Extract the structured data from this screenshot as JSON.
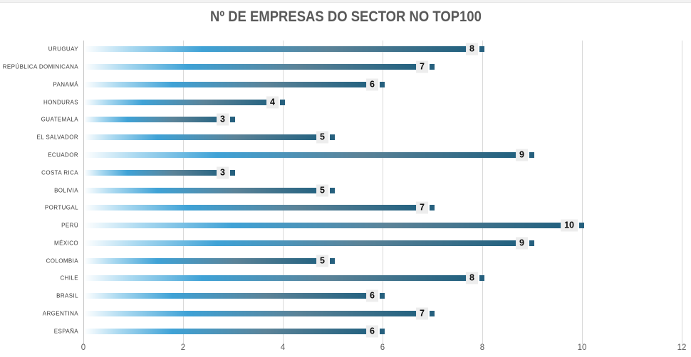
{
  "title": "Nº DE EMPRESAS DO SECTOR NO TOP100",
  "colors": {
    "title_color": "#595959",
    "bar_gradient": [
      "#ffffff",
      "#a8d8f0",
      "#3fa2d6",
      "#5b8398",
      "#1e5e7d"
    ],
    "bar_end_marker": "#26607e",
    "label_box_bg": "#ededed",
    "label_text": "#0d0d0d",
    "gridline": "#d9d9d9",
    "axis_line": "#c6c6c6",
    "tick_label": "#595959",
    "category_label": "#3a3a3a"
  },
  "chart_data": {
    "type": "bar",
    "orientation": "horizontal",
    "title": "Nº DE EMPRESAS DO SECTOR NO TOP100",
    "categories": [
      "URUGUAY",
      "REPÚBLICA DOMINICANA",
      "PANAMÁ",
      "HONDURAS",
      "GUATEMALA",
      "EL SALVADOR",
      "ECUADOR",
      "COSTA RICA",
      "BOLIVIA",
      "PORTUGAL",
      "PERÚ",
      "MÉXICO",
      "COLOMBIA",
      "CHILE",
      "BRASIL",
      "ARGENTINA",
      "ESPAÑA"
    ],
    "values": [
      8,
      7,
      6,
      4,
      3,
      5,
      9,
      3,
      5,
      7,
      10,
      9,
      5,
      8,
      6,
      7,
      6
    ],
    "xlabel": "",
    "ylabel": "",
    "xlim": [
      0,
      12
    ],
    "x_ticks": [
      0,
      2,
      4,
      6,
      8,
      10,
      12
    ],
    "grid": true,
    "legend": false,
    "data_labels": true
  }
}
